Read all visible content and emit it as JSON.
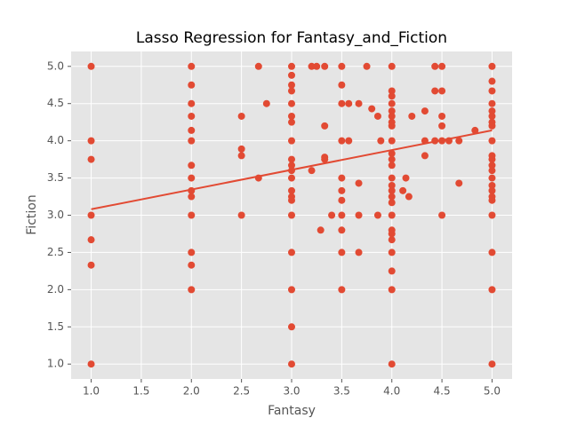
{
  "chart_data": {
    "type": "scatter",
    "title": "Lasso Regression for Fantasy_and_Fiction",
    "xlabel": "Fantasy",
    "ylabel": "Fiction",
    "color": "#e24a33",
    "grid": true,
    "x": [
      1,
      1,
      1,
      1,
      1,
      1,
      1,
      2,
      2,
      2,
      2,
      2,
      2,
      2,
      2,
      2,
      2,
      2,
      2,
      2,
      2,
      2.5,
      2.5,
      2.5,
      2.5,
      2.67,
      2.67,
      2.75,
      3,
      3,
      3,
      3,
      3,
      3,
      3,
      3,
      3,
      3,
      3,
      3,
      3,
      3,
      3,
      3,
      3,
      3,
      3,
      3,
      3.2,
      3.2,
      3.25,
      3.29,
      3.33,
      3.33,
      3.33,
      3.33,
      3.4,
      3.5,
      3.5,
      3.5,
      3.5,
      3.5,
      3.5,
      3.5,
      3.5,
      3.5,
      3.5,
      3.5,
      3.57,
      3.57,
      3.67,
      3.67,
      3.67,
      3.67,
      3.75,
      3.8,
      3.86,
      3.86,
      3.89,
      4,
      4,
      4,
      4,
      4,
      4,
      4,
      4,
      4,
      4,
      4,
      4,
      4,
      4,
      4,
      4,
      4,
      4,
      4,
      4,
      4,
      4,
      4,
      4,
      4,
      4.11,
      4.14,
      4.17,
      4.2,
      4.33,
      4.33,
      4.33,
      4.43,
      4.43,
      4.43,
      4.5,
      4.5,
      4.5,
      4.5,
      4.5,
      4.5,
      4.57,
      4.67,
      4.67,
      4.83,
      5,
      5,
      5,
      5,
      5,
      5,
      5,
      5,
      5,
      5,
      5,
      5,
      5,
      5,
      5,
      5,
      5,
      5,
      5,
      5,
      5,
      5
    ],
    "values": [
      5,
      4,
      3.75,
      3,
      2.67,
      2.33,
      1,
      5,
      4.75,
      4.5,
      4.33,
      4.14,
      4,
      3.67,
      3.5,
      3.33,
      3.25,
      3,
      2.5,
      2.33,
      2,
      4.33,
      3.89,
      3.8,
      3,
      5,
      3.5,
      4.5,
      5,
      4.88,
      4.75,
      4.67,
      4.5,
      4.33,
      4.25,
      4,
      3.75,
      3.67,
      3.6,
      3.5,
      3.33,
      3.25,
      3.2,
      3,
      2.5,
      2,
      1.5,
      1,
      5,
      3.6,
      5,
      2.8,
      5,
      4.2,
      3.78,
      3.75,
      3,
      5,
      4.75,
      4.5,
      4,
      3.5,
      3.33,
      3.2,
      3,
      2.8,
      2.5,
      2,
      4.5,
      4,
      4.5,
      3.43,
      3,
      2.5,
      5,
      4.43,
      4.33,
      3,
      4,
      5,
      4.67,
      4.6,
      4.5,
      4.4,
      4.33,
      4.25,
      4.2,
      4,
      3.83,
      3.75,
      3.67,
      3.5,
      3.4,
      3.33,
      3.25,
      3.17,
      3,
      2.8,
      2.75,
      2.67,
      2.5,
      2.25,
      2,
      1,
      3.33,
      3.5,
      3.25,
      4.33,
      4.4,
      4,
      3.8,
      5,
      4.67,
      4,
      5,
      4.67,
      4.33,
      4.2,
      4,
      3,
      4,
      4,
      3.43,
      4.14,
      5,
      4.8,
      4.67,
      4.5,
      4.4,
      4.33,
      4.25,
      4.2,
      4,
      3.8,
      3.75,
      3.67,
      3.6,
      3.5,
      3.4,
      3.33,
      3.25,
      3.2,
      3,
      2.5,
      2,
      1
    ],
    "fit_line": {
      "x": [
        1,
        5
      ],
      "y": [
        3.08,
        4.14
      ],
      "color": "#e24a33"
    },
    "xlim": [
      0.8,
      5.2
    ],
    "xticks": [
      {
        "value": 1,
        "label": "1.0"
      },
      {
        "value": 1.5,
        "label": "1.5"
      },
      {
        "value": 2,
        "label": "2.0"
      },
      {
        "value": 2.5,
        "label": "2.5"
      },
      {
        "value": 3,
        "label": "3.0"
      },
      {
        "value": 3.5,
        "label": "3.5"
      },
      {
        "value": 4,
        "label": "4.0"
      },
      {
        "value": 4.5,
        "label": "4.5"
      },
      {
        "value": 5,
        "label": "5.0"
      }
    ],
    "ylim": [
      0.8,
      5.2
    ],
    "yticks": [
      {
        "value": 1,
        "label": "1.0"
      },
      {
        "value": 1.5,
        "label": "1.5"
      },
      {
        "value": 2,
        "label": "2.0"
      },
      {
        "value": 2.5,
        "label": "2.5"
      },
      {
        "value": 3,
        "label": "3.0"
      },
      {
        "value": 3.5,
        "label": "3.5"
      },
      {
        "value": 4,
        "label": "4.0"
      },
      {
        "value": 4.5,
        "label": "4.5"
      },
      {
        "value": 5,
        "label": "5.0"
      }
    ]
  }
}
